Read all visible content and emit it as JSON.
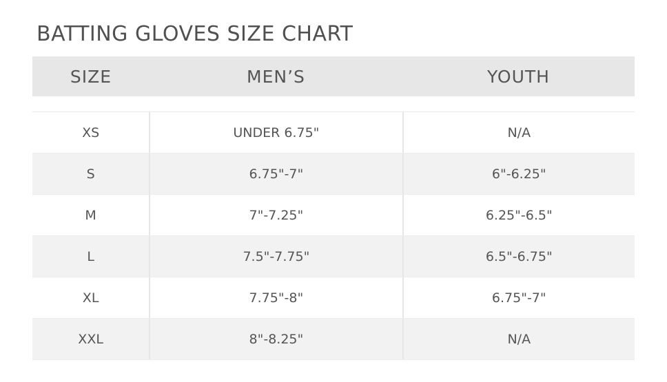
{
  "title": "BATTING GLOVES SIZE CHART",
  "headers": [
    "SIZE",
    "MEN’S",
    "YOUTH"
  ],
  "rows": [
    [
      "XS",
      "UNDER 6.75\"",
      "N/A"
    ],
    [
      "S",
      "6.75\"-7\"",
      "6\"-6.25\""
    ],
    [
      "M",
      "7\"-7.25\"",
      "6.25\"-6.5\""
    ],
    [
      "L",
      "7.5\"-7.75\"",
      "6.5\"-6.75\""
    ],
    [
      "XL",
      "7.75\"-8\"",
      "6.75\"-7\""
    ],
    [
      "XXL",
      "8\"-8.25\"",
      "N/A"
    ]
  ],
  "colors": {
    "header_bg": "#e7e7e7",
    "alt_row_bg": "#f2f2f2",
    "text": "#555555"
  }
}
